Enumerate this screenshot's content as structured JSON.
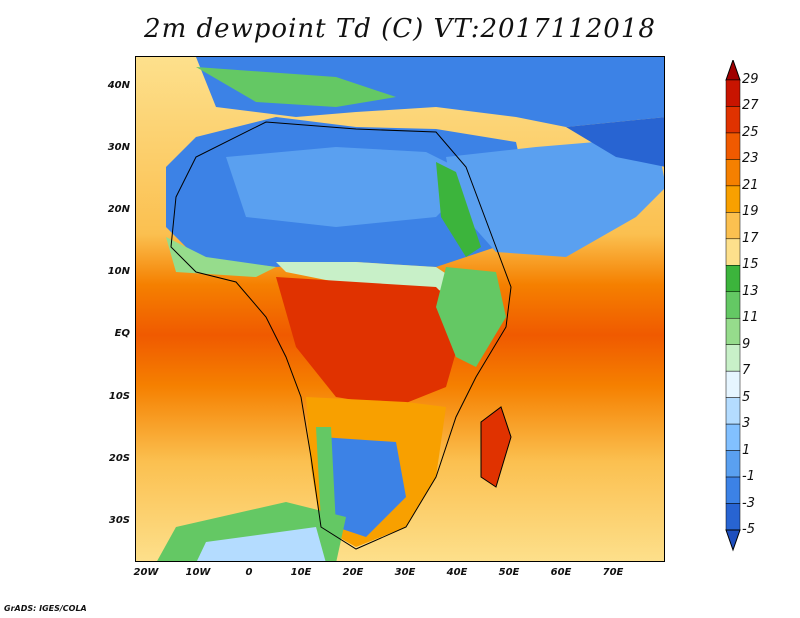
{
  "title": "2m dewpoint Td (C) VT:2017112018",
  "footer": "GrADS: IGES/COLA",
  "lat_labels": [
    "40N",
    "30N",
    "20N",
    "10N",
    "EQ",
    "10S",
    "20S",
    "30S"
  ],
  "lon_labels": [
    "20W",
    "10W",
    "0",
    "10E",
    "20E",
    "30E",
    "40E",
    "50E",
    "60E",
    "70E"
  ],
  "colorbar": {
    "labels": [
      "29",
      "27",
      "25",
      "23",
      "21",
      "19",
      "17",
      "15",
      "13",
      "11",
      "9",
      "7",
      "5",
      "3",
      "1",
      "-1",
      "-3",
      "-5"
    ],
    "colors": [
      "#a00000",
      "#c81400",
      "#e03200",
      "#f05a00",
      "#f58000",
      "#f8a000",
      "#fbc050",
      "#fde08c",
      "#3cb43c",
      "#64c864",
      "#96dc8c",
      "#c8f0c8",
      "#e6f5ff",
      "#b4dcff",
      "#82c0ff",
      "#5aa0f0",
      "#3c82e6",
      "#2864d2",
      "#1e4fbe"
    ]
  },
  "map": {
    "lon_range": [
      -25,
      80
    ],
    "lat_range": [
      -37,
      45
    ],
    "regions": [
      {
        "name": "ocean-humid-belt",
        "color": "#f05a00"
      },
      {
        "name": "sahara-dry",
        "color": "#3c82e6"
      },
      {
        "name": "arabia-dry",
        "color": "#5aa0f0"
      },
      {
        "name": "kalahari-dry",
        "color": "#3c82e6"
      }
    ]
  }
}
